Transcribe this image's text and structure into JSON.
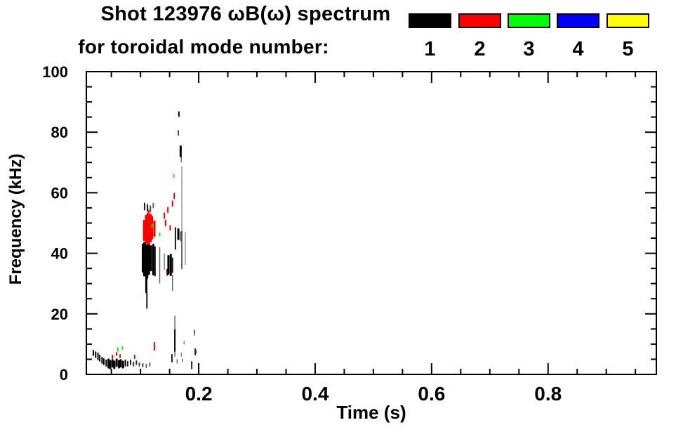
{
  "title": {
    "line1": "Shot 123976 ωB(ω) spectrum",
    "line2": "for toroidal mode number:"
  },
  "legend": {
    "items": [
      {
        "label": "1",
        "color": "#000000"
      },
      {
        "label": "2",
        "color": "#ff0000"
      },
      {
        "label": "3",
        "color": "#00ff00"
      },
      {
        "label": "4",
        "color": "#0000ff"
      },
      {
        "label": "5",
        "color": "#ffff00"
      }
    ]
  },
  "chart_data": {
    "type": "scatter",
    "title": "Shot 123976 ωB(ω) spectrum for toroidal mode number: 1 2 3 4 5",
    "xlabel": "Time (s)",
    "ylabel": "Frequency (kHz)",
    "xlim": [
      0.007,
      0.986
    ],
    "ylim": [
      0,
      100
    ],
    "x_major_ticks": [
      0.2,
      0.4,
      0.6,
      0.8
    ],
    "x_tick_labels": [
      "0.2",
      "0.4",
      "0.6",
      "0.8"
    ],
    "x_minor_step": 0.05,
    "y_major_ticks": [
      0,
      20,
      40,
      60,
      80,
      100
    ],
    "y_tick_labels": [
      "0",
      "20",
      "40",
      "60",
      "80",
      "100"
    ],
    "y_minor_step": 5,
    "grid": false,
    "legend_position": "top-right-above-plot",
    "series": [
      {
        "name": "1",
        "mode": 1,
        "color": "#000000",
        "segments": [
          [
            0.019,
            6.3,
            7.9,
            2,
            1
          ],
          [
            0.023,
            5.6,
            7.4,
            2,
            1
          ],
          [
            0.027,
            4.9,
            7.0,
            2,
            1
          ],
          [
            0.03,
            4.4,
            6.3,
            2,
            1
          ],
          [
            0.034,
            3.7,
            5.6,
            2,
            1
          ],
          [
            0.037,
            3.3,
            5.1,
            2,
            1
          ],
          [
            0.041,
            2.8,
            4.7,
            2,
            1
          ],
          [
            0.045,
            2.3,
            4.9,
            3,
            1
          ],
          [
            0.048,
            2.1,
            4.4,
            3,
            1
          ],
          [
            0.052,
            2.6,
            4.7,
            3,
            1
          ],
          [
            0.055,
            2.1,
            4.2,
            3,
            1
          ],
          [
            0.059,
            2.8,
            4.9,
            3,
            1
          ],
          [
            0.063,
            2.3,
            4.4,
            3,
            1
          ],
          [
            0.066,
            2.6,
            4.7,
            3,
            1
          ],
          [
            0.07,
            2.3,
            4.2,
            3,
            1
          ],
          [
            0.074,
            2.8,
            4.7,
            2,
            1
          ],
          [
            0.078,
            2.8,
            4.2,
            2,
            0.9
          ],
          [
            0.083,
            3.3,
            4.7,
            2,
            0.9
          ],
          [
            0.088,
            2.8,
            4.0,
            2,
            0.8
          ],
          [
            0.093,
            3.3,
            4.4,
            2,
            0.8
          ],
          [
            0.098,
            2.8,
            3.7,
            2,
            0.7
          ],
          [
            0.104,
            2.6,
            3.5,
            2,
            0.7
          ],
          [
            0.11,
            2.3,
            3.3,
            2,
            0.6
          ],
          [
            0.116,
            2.8,
            3.7,
            2,
            0.6
          ],
          [
            0.154,
            4.2,
            6.5,
            2,
            0.9
          ],
          [
            0.163,
            3.7,
            4.9,
            1.5,
            0.6
          ],
          [
            0.172,
            4.2,
            5.1,
            1.5,
            0.6
          ],
          [
            0.188,
            1.9,
            4.2,
            2,
            0.85
          ],
          [
            0.194,
            6.5,
            8.4,
            2,
            0.85
          ],
          [
            0.17,
            6.0,
            7.0,
            1.5,
            0.5
          ],
          [
            0.175,
            10.0,
            10.9,
            1.5,
            0.5
          ],
          [
            0.193,
            13.0,
            14.4,
            1.5,
            0.6
          ],
          [
            0.196,
            7.0,
            7.9,
            1.5,
            0.5
          ],
          [
            0.107,
            54.4,
            56.5,
            2,
            0.9
          ],
          [
            0.112,
            54.0,
            56.0,
            2,
            0.9
          ],
          [
            0.117,
            53.7,
            55.6,
            2,
            0.7
          ],
          [
            0.122,
            55.1,
            56.5,
            2,
            0.6
          ],
          [
            0.104,
            34.0,
            42.8,
            3,
            1
          ],
          [
            0.107,
            32.8,
            43.3,
            4,
            1
          ],
          [
            0.111,
            31.9,
            42.6,
            4,
            1
          ],
          [
            0.114,
            33.3,
            43.0,
            4,
            1
          ],
          [
            0.118,
            34.4,
            42.3,
            3,
            1
          ],
          [
            0.122,
            33.0,
            42.8,
            3,
            1
          ],
          [
            0.125,
            32.6,
            42.1,
            2,
            0.9
          ],
          [
            0.133,
            30.2,
            41.9,
            1.5,
            0.6
          ],
          [
            0.141,
            34.7,
            39.8,
            1.5,
            0.5
          ],
          [
            0.11,
            27.2,
            33.3,
            3,
            1
          ],
          [
            0.111,
            21.9,
            27.2,
            2,
            0.9
          ],
          [
            0.148,
            33.3,
            39.1,
            3,
            1
          ],
          [
            0.152,
            32.8,
            39.5,
            3,
            1
          ],
          [
            0.155,
            33.7,
            38.4,
            2,
            0.9
          ],
          [
            0.146,
            32.8,
            34.7,
            2,
            1
          ],
          [
            0.155,
            27.7,
            32.8,
            1.5,
            0.6
          ],
          [
            0.16,
            41.4,
            48.4,
            2,
            0.9
          ],
          [
            0.165,
            44.7,
            47.9,
            3,
            1
          ],
          [
            0.169,
            44.2,
            47.0,
            2,
            0.6
          ],
          [
            0.171,
            47.2,
            68.6,
            1.2,
            0.5
          ],
          [
            0.171,
            34.9,
            47.2,
            1.5,
            0.8
          ],
          [
            0.177,
            36.3,
            47.0,
            1.2,
            0.5
          ],
          [
            0.159,
            14.7,
            19.3,
            1.5,
            0.6
          ],
          [
            0.159,
            7.7,
            14.7,
            2,
            1
          ],
          [
            0.159,
            6.0,
            7.7,
            1.5,
            0.6
          ],
          [
            0.193,
            13.7,
            14.7,
            1.5,
            0.5
          ],
          [
            0.166,
            85.3,
            86.7,
            2,
            1
          ],
          [
            0.165,
            79.1,
            80.5,
            2,
            0.7
          ],
          [
            0.169,
            72.1,
            75.3,
            3,
            1
          ],
          [
            0.17,
            70.2,
            72.1,
            1.5,
            0.6
          ]
        ]
      },
      {
        "name": "2",
        "mode": 2,
        "color": "#ff0000",
        "segments": [
          [
            0.052,
            5.3,
            6.3,
            2,
            1
          ],
          [
            0.059,
            6.3,
            7.2,
            2,
            1
          ],
          [
            0.065,
            5.6,
            6.5,
            2,
            1
          ],
          [
            0.09,
            5.3,
            6.3,
            2,
            1
          ],
          [
            0.124,
            8.1,
            10.5,
            2,
            1
          ],
          [
            0.145,
            33.5,
            34.4,
            1.5,
            1
          ],
          [
            0.106,
            44.4,
            50.7,
            3,
            1
          ],
          [
            0.11,
            43.7,
            52.3,
            4,
            1
          ],
          [
            0.113,
            43.3,
            53.0,
            4,
            1
          ],
          [
            0.117,
            44.0,
            52.6,
            4,
            1
          ],
          [
            0.12,
            44.9,
            51.9,
            3,
            1
          ],
          [
            0.124,
            45.8,
            50.5,
            3,
            1
          ],
          [
            0.114,
            52.8,
            54.2,
            2,
            1
          ],
          [
            0.158,
            58.1,
            59.8,
            2,
            1
          ],
          [
            0.155,
            55.6,
            57.2,
            2,
            1
          ],
          [
            0.147,
            53.5,
            55.1,
            2,
            1
          ],
          [
            0.141,
            51.6,
            53.3,
            2,
            1
          ],
          [
            0.143,
            49.1,
            50.9,
            2,
            1
          ],
          [
            0.151,
            47.7,
            49.1,
            2,
            1
          ]
        ]
      },
      {
        "name": "3",
        "mode": 3,
        "color": "#00ff00",
        "segments": [
          [
            0.061,
            7.7,
            8.8,
            2,
            1
          ],
          [
            0.069,
            8.4,
            9.1,
            2,
            1
          ],
          [
            0.12,
            48.6,
            49.5,
            2,
            1
          ],
          [
            0.133,
            45.8,
            46.7,
            2,
            1
          ],
          [
            0.157,
            65.1,
            66.0,
            2,
            1
          ]
        ]
      },
      {
        "name": "4",
        "mode": 4,
        "color": "#0000ff",
        "segments": []
      },
      {
        "name": "5",
        "mode": 5,
        "color": "#ffff00",
        "segments": []
      }
    ]
  }
}
